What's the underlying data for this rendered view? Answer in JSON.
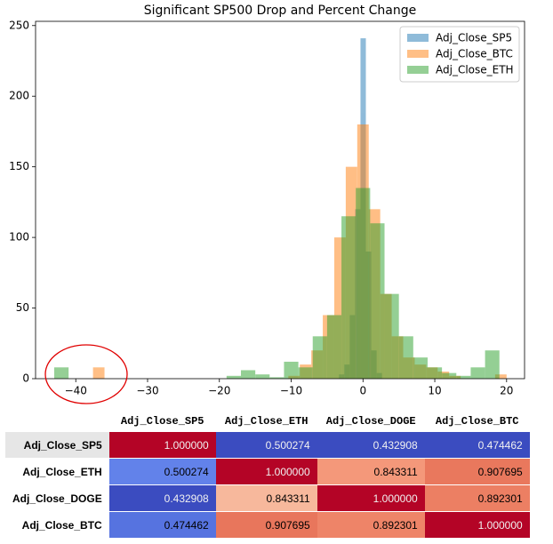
{
  "chart_data": {
    "type": "histogram",
    "title": "Significant SP500 Drop and Percent Change",
    "xlim": [
      -45.6,
      22.5
    ],
    "ylim": [
      0,
      253
    ],
    "xticks": [
      {
        "value": -40,
        "label": "−40"
      },
      {
        "value": -30,
        "label": "−30"
      },
      {
        "value": -20,
        "label": "−20"
      },
      {
        "value": -10,
        "label": "−10"
      },
      0,
      10,
      20
    ],
    "yticks": [
      0,
      50,
      100,
      150,
      200,
      250
    ],
    "legend": "upper right",
    "opacity": 0.5,
    "series": [
      {
        "name": "Adj_Close_SP5",
        "color": "#1f77b4",
        "bins": [
          -3.35,
          -2.6,
          -1.85,
          -1.1,
          -0.35,
          0.4,
          1.15,
          1.9,
          2.65
        ],
        "values": [
          3,
          10,
          45,
          120,
          241,
          90,
          20,
          4
        ]
      },
      {
        "name": "Adj_Close_BTC",
        "color": "#ff7f0e",
        "bins": [
          -37.6,
          -36,
          -34.4,
          -32.8,
          -31.2,
          -29.6,
          -28,
          -26.4,
          -24.8,
          -23.2,
          -21.6,
          -20,
          -18.4,
          -16.8,
          -15.2,
          -13.6,
          -12,
          -10.4,
          -8.8,
          -7.2,
          -5.6,
          -4,
          -2.4,
          -0.8,
          0.8,
          2.4,
          4,
          5.6,
          7.2,
          8.8,
          10.4,
          12,
          13.6,
          15.2,
          16.8,
          18.4,
          20
        ],
        "values": [
          8,
          0,
          0,
          0,
          0,
          0,
          0,
          0,
          0,
          0,
          0,
          0,
          0,
          0,
          0,
          0,
          0,
          2,
          10,
          20,
          45,
          100,
          150,
          180,
          120,
          60,
          30,
          15,
          10,
          8,
          5,
          2,
          0,
          0,
          0,
          3
        ]
      },
      {
        "name": "Adj_Close_ETH",
        "color": "#2ca02c",
        "bins": [
          -43,
          -41,
          -39,
          -37,
          -35,
          -33,
          -31,
          -29,
          -27,
          -25,
          -23,
          -21,
          -19,
          -17,
          -15,
          -13,
          -11,
          -9,
          -7,
          -5,
          -3,
          -1,
          1,
          3,
          5,
          7,
          9,
          11,
          13,
          15,
          17,
          19,
          21
        ],
        "values": [
          8,
          0,
          0,
          0,
          0,
          0,
          0,
          0,
          0,
          0,
          0,
          0,
          2,
          6,
          3,
          1,
          12,
          8,
          30,
          45,
          115,
          135,
          110,
          60,
          30,
          15,
          8,
          4,
          2,
          8,
          20,
          0
        ]
      }
    ]
  },
  "table": {
    "columns": [
      "Adj_Close_SP5",
      "Adj_Close_ETH",
      "Adj_Close_DOGE",
      "Adj_Close_BTC"
    ],
    "rows": [
      {
        "label": "Adj_Close_SP5",
        "cells": [
          "1.000000",
          "0.500274",
          "0.432908",
          "0.474462"
        ],
        "colors": [
          "#b40426",
          "#3b4cc0",
          "#3b4cc0",
          "#3b4cc0"
        ]
      },
      {
        "label": "Adj_Close_ETH",
        "cells": [
          "0.500274",
          "1.000000",
          "0.843311",
          "0.907695"
        ],
        "colors": [
          "#6282ea",
          "#b40426",
          "#f4987a",
          "#e9785d"
        ]
      },
      {
        "label": "Adj_Close_DOGE",
        "cells": [
          "0.432908",
          "0.843311",
          "1.000000",
          "0.892301"
        ],
        "colors": [
          "#3b4cc0",
          "#f7b89c",
          "#b40426",
          "#ec7f63"
        ]
      },
      {
        "label": "Adj_Close_BTC",
        "cells": [
          "0.474462",
          "0.907695",
          "0.892301",
          "1.000000"
        ],
        "colors": [
          "#5673e0",
          "#e8765c",
          "#ee8468",
          "#b40426"
        ]
      }
    ]
  }
}
